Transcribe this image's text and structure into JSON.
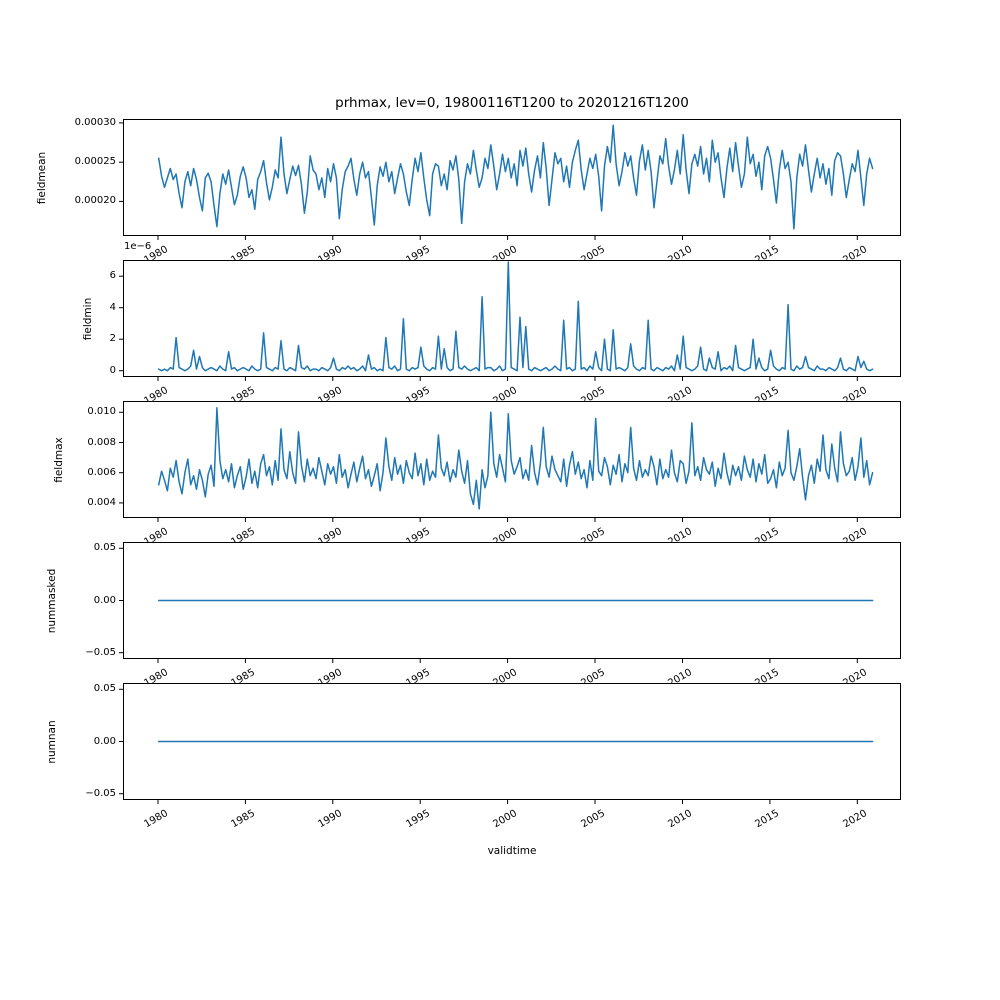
{
  "figure": {
    "background": "#ffffff"
  },
  "chart_data": {
    "type": "line",
    "title": "prhmax, lev=0, 19800116T1200 to 20201216T1200",
    "xlabel": "validtime",
    "line_color": "#1f77b4",
    "grid": false,
    "legend": false,
    "x_axis": {
      "start": 1980.04,
      "end": 2020.88,
      "step_years": 0.166667,
      "xlim": [
        1978.0,
        2022.5
      ],
      "ticks": [
        1980,
        1985,
        1990,
        1995,
        2000,
        2005,
        2010,
        2015,
        2020
      ],
      "tick_labels": [
        "1980",
        "1985",
        "1990",
        "1995",
        "2000",
        "2005",
        "2010",
        "2015",
        "2020"
      ]
    },
    "subplots": [
      {
        "name": "fieldmean",
        "ylabel": "fieldmean",
        "value_scale": 0.0001,
        "ylim": [
          1.56,
          3.05
        ],
        "yticks": [
          2.0,
          2.5,
          3.0
        ],
        "ytick_labels": [
          "0.00020",
          "0.00025",
          "0.00030"
        ],
        "values": [
          2.55,
          2.32,
          2.18,
          2.3,
          2.42,
          2.28,
          2.35,
          2.1,
          1.92,
          2.25,
          2.38,
          2.2,
          2.42,
          2.28,
          2.05,
          1.88,
          2.3,
          2.36,
          2.25,
          1.95,
          1.68,
          2.1,
          2.35,
          2.22,
          2.4,
          2.18,
          1.96,
          2.08,
          2.32,
          2.44,
          2.3,
          2.05,
          2.15,
          1.9,
          2.28,
          2.38,
          2.52,
          2.24,
          2.02,
          2.18,
          2.4,
          2.3,
          2.82,
          2.35,
          2.1,
          2.28,
          2.45,
          2.33,
          2.46,
          2.22,
          1.85,
          2.12,
          2.58,
          2.4,
          2.35,
          2.15,
          2.3,
          2.05,
          2.42,
          2.25,
          2.48,
          2.3,
          1.78,
          2.15,
          2.38,
          2.45,
          2.55,
          2.28,
          2.08,
          2.35,
          2.5,
          2.3,
          2.38,
          2.05,
          1.7,
          2.2,
          2.44,
          2.32,
          2.5,
          2.25,
          2.38,
          2.1,
          2.3,
          2.48,
          2.35,
          2.12,
          1.95,
          2.28,
          2.55,
          2.38,
          2.62,
          2.3,
          2.02,
          1.82,
          2.35,
          2.48,
          2.45,
          2.2,
          2.35,
          2.15,
          2.52,
          2.4,
          2.58,
          2.28,
          1.72,
          2.25,
          2.48,
          2.35,
          2.65,
          2.4,
          2.18,
          2.3,
          2.55,
          2.42,
          2.72,
          2.45,
          2.15,
          2.35,
          2.6,
          2.38,
          2.55,
          2.3,
          2.48,
          2.2,
          2.65,
          2.45,
          2.68,
          2.35,
          2.12,
          2.4,
          2.58,
          2.3,
          2.75,
          2.42,
          1.95,
          2.28,
          2.62,
          2.48,
          2.55,
          2.25,
          2.45,
          2.18,
          2.5,
          2.65,
          2.78,
          2.4,
          2.15,
          2.35,
          2.55,
          2.42,
          2.6,
          2.32,
          1.88,
          2.45,
          2.7,
          2.5,
          2.97,
          2.48,
          2.2,
          2.38,
          2.62,
          2.45,
          2.58,
          2.3,
          2.08,
          2.52,
          2.72,
          2.4,
          2.65,
          2.38,
          1.92,
          2.25,
          2.58,
          2.48,
          2.8,
          2.45,
          2.22,
          2.4,
          2.65,
          2.35,
          2.85,
          2.4,
          2.1,
          2.48,
          2.6,
          2.45,
          2.7,
          2.35,
          2.55,
          2.25,
          2.78,
          2.5,
          2.62,
          2.3,
          2.05,
          2.42,
          2.68,
          2.38,
          2.75,
          2.45,
          2.18,
          2.35,
          2.82,
          2.48,
          2.6,
          2.32,
          2.5,
          2.15,
          2.58,
          2.7,
          2.55,
          2.28,
          1.98,
          2.4,
          2.65,
          2.42,
          2.5,
          2.25,
          1.65,
          2.3,
          2.6,
          2.45,
          2.72,
          2.4,
          2.12,
          2.35,
          2.55,
          2.3,
          2.48,
          2.22,
          2.42,
          2.08,
          2.52,
          2.62,
          2.58,
          2.35,
          2.05,
          2.28,
          2.48,
          2.38,
          2.65,
          2.3,
          1.95,
          2.35,
          2.55,
          2.42
        ]
      },
      {
        "name": "fieldmin",
        "ylabel": "fieldmin",
        "value_scale": 1e-06,
        "offset_text": "1e−6",
        "ylim": [
          -0.4,
          7.03
        ],
        "yticks": [
          0,
          2,
          4,
          6
        ],
        "ytick_labels": [
          "0",
          "2",
          "4",
          "6"
        ],
        "values": [
          0.1,
          0.0,
          0.1,
          0.0,
          0.2,
          0.1,
          2.1,
          0.2,
          0.1,
          0.0,
          0.1,
          0.3,
          1.3,
          0.1,
          0.9,
          0.2,
          0.0,
          0.1,
          0.2,
          0.1,
          0.0,
          0.3,
          0.1,
          0.0,
          1.2,
          0.1,
          0.2,
          0.0,
          0.1,
          0.2,
          0.1,
          0.0,
          0.3,
          0.1,
          0.0,
          0.1,
          2.4,
          0.2,
          0.1,
          0.0,
          0.2,
          0.1,
          1.9,
          0.1,
          0.0,
          0.2,
          0.1,
          0.0,
          1.6,
          0.2,
          0.1,
          0.3,
          0.0,
          0.1,
          0.1,
          0.0,
          0.2,
          0.1,
          0.0,
          0.2,
          0.8,
          0.1,
          0.0,
          0.2,
          0.1,
          0.3,
          0.1,
          0.2,
          0.0,
          0.1,
          0.3,
          0.0,
          1.0,
          0.1,
          0.2,
          0.0,
          0.1,
          0.0,
          2.1,
          0.2,
          0.1,
          0.3,
          0.0,
          0.1,
          3.3,
          0.1,
          0.0,
          0.2,
          0.1,
          0.2,
          1.5,
          0.3,
          0.1,
          0.0,
          0.2,
          0.1,
          2.2,
          0.1,
          1.4,
          0.2,
          0.0,
          0.1,
          2.5,
          0.2,
          0.1,
          0.3,
          0.1,
          0.0,
          0.1,
          0.2,
          0.0,
          4.7,
          0.1,
          0.2,
          0.2,
          0.0,
          0.1,
          0.3,
          0.0,
          0.1,
          6.9,
          0.2,
          0.1,
          0.0,
          3.4,
          0.2,
          2.8,
          0.1,
          0.0,
          0.2,
          0.1,
          0.0,
          0.1,
          0.2,
          0.0,
          0.1,
          0.3,
          0.1,
          0.0,
          3.2,
          0.1,
          0.2,
          0.0,
          0.1,
          4.4,
          0.1,
          0.2,
          0.0,
          0.3,
          0.1,
          1.2,
          0.2,
          0.0,
          2.0,
          0.1,
          0.0,
          2.6,
          0.1,
          0.2,
          0.1,
          0.0,
          0.2,
          1.7,
          0.3,
          0.1,
          0.0,
          0.2,
          0.1,
          3.2,
          0.1,
          0.0,
          0.2,
          0.1,
          0.0,
          0.2,
          0.1,
          0.3,
          0.0,
          1.0,
          0.1,
          2.2,
          0.2,
          0.1,
          0.0,
          0.1,
          0.3,
          1.5,
          0.1,
          0.0,
          0.8,
          0.2,
          0.1,
          1.2,
          0.0,
          0.2,
          0.1,
          0.3,
          0.0,
          1.6,
          0.2,
          0.1,
          0.0,
          0.1,
          0.2,
          2.0,
          0.1,
          0.8,
          0.2,
          0.0,
          0.1,
          1.3,
          0.3,
          0.1,
          0.0,
          0.2,
          0.1,
          4.2,
          0.1,
          0.0,
          0.3,
          0.1,
          0.2,
          0.9,
          0.2,
          0.1,
          0.0,
          0.3,
          0.1,
          0.1,
          0.0,
          0.2,
          0.1,
          0.0,
          0.2,
          0.8,
          0.1,
          0.0,
          0.2,
          0.1,
          0.0,
          0.9,
          0.2,
          0.6,
          0.1,
          0.0,
          0.1
        ]
      },
      {
        "name": "fieldmax",
        "ylabel": "fieldmax",
        "value_scale": 0.001,
        "ylim": [
          3.0,
          10.75
        ],
        "yticks": [
          4,
          6,
          8,
          10
        ],
        "ytick_labels": [
          "0.004",
          "0.006",
          "0.008",
          "0.010"
        ],
        "values": [
          5.2,
          6.1,
          5.5,
          4.8,
          6.3,
          5.7,
          6.8,
          5.4,
          4.6,
          6.0,
          6.9,
          5.2,
          5.8,
          4.9,
          6.2,
          5.5,
          4.4,
          5.9,
          6.5,
          5.1,
          10.3,
          6.8,
          5.6,
          6.2,
          5.4,
          6.6,
          5.0,
          5.8,
          6.4,
          4.9,
          5.7,
          6.9,
          5.3,
          6.1,
          5.0,
          6.6,
          7.2,
          5.8,
          6.4,
          5.2,
          6.8,
          5.5,
          8.9,
          6.2,
          5.6,
          7.4,
          6.0,
          5.3,
          8.7,
          6.5,
          5.4,
          6.9,
          5.8,
          6.3,
          5.6,
          7.0,
          6.1,
          5.2,
          6.6,
          5.9,
          6.4,
          5.3,
          7.2,
          5.7,
          6.2,
          5.0,
          5.9,
          6.7,
          5.4,
          6.3,
          7.1,
          5.6,
          6.2,
          5.1,
          5.8,
          6.6,
          4.8,
          6.0,
          8.3,
          6.4,
          5.5,
          7.0,
          5.9,
          6.5,
          5.3,
          6.8,
          6.0,
          5.6,
          7.3,
          5.8,
          6.6,
          5.2,
          6.9,
          5.5,
          6.1,
          5.7,
          8.5,
          6.3,
          5.8,
          6.7,
          5.4,
          6.2,
          5.7,
          7.5,
          6.1,
          5.3,
          6.8,
          4.6,
          3.9,
          5.5,
          3.6,
          6.2,
          5.0,
          5.8,
          10.0,
          6.6,
          5.7,
          7.2,
          6.3,
          5.4,
          9.9,
          6.8,
          5.9,
          6.4,
          7.0,
          5.6,
          6.2,
          5.5,
          7.8,
          6.0,
          5.2,
          6.6,
          9.0,
          6.4,
          5.7,
          7.1,
          6.2,
          5.8,
          5.4,
          6.9,
          5.1,
          6.5,
          7.4,
          5.9,
          6.7,
          5.6,
          6.2,
          5.0,
          6.8,
          5.5,
          9.6,
          6.1,
          5.8,
          7.0,
          6.4,
          5.2,
          6.5,
          5.9,
          7.2,
          5.4,
          6.6,
          6.0,
          9.0,
          6.3,
          5.5,
          6.8,
          5.7,
          6.2,
          5.8,
          7.1,
          6.4,
          5.2,
          6.9,
          5.6,
          6.2,
          5.7,
          7.5,
          6.0,
          5.4,
          6.8,
          6.6,
          5.3,
          6.1,
          9.3,
          5.8,
          6.4,
          5.5,
          7.0,
          6.2,
          5.9,
          6.7,
          5.1,
          6.3,
          5.6,
          7.3,
          6.0,
          5.2,
          6.5,
          5.8,
          6.4,
          5.5,
          7.1,
          6.2,
          5.7,
          6.9,
          5.4,
          6.6,
          5.9,
          7.2,
          5.3,
          5.6,
          6.2,
          5.0,
          6.7,
          5.8,
          6.3,
          8.8,
          6.0,
          5.5,
          6.4,
          7.6,
          5.7,
          4.2,
          5.8,
          6.5,
          5.3,
          6.9,
          6.1,
          8.5,
          6.2,
          5.6,
          7.9,
          6.3,
          5.4,
          8.7,
          6.6,
          5.8,
          6.1,
          7.0,
          5.5,
          6.4,
          8.3,
          5.7,
          6.8,
          5.2,
          6.0
        ]
      },
      {
        "name": "nummasked",
        "ylabel": "nummasked",
        "value_scale": 1,
        "ylim": [
          -0.056,
          0.056
        ],
        "yticks": [
          -0.05,
          0.0,
          0.05
        ],
        "ytick_labels": [
          "−0.05",
          "0.00",
          "0.05"
        ],
        "constant_value": 0
      },
      {
        "name": "numnan",
        "ylabel": "numnan",
        "value_scale": 1,
        "ylim": [
          -0.056,
          0.056
        ],
        "yticks": [
          -0.05,
          0.0,
          0.05
        ],
        "ytick_labels": [
          "−0.05",
          "0.00",
          "0.05"
        ],
        "constant_value": 0
      }
    ]
  }
}
